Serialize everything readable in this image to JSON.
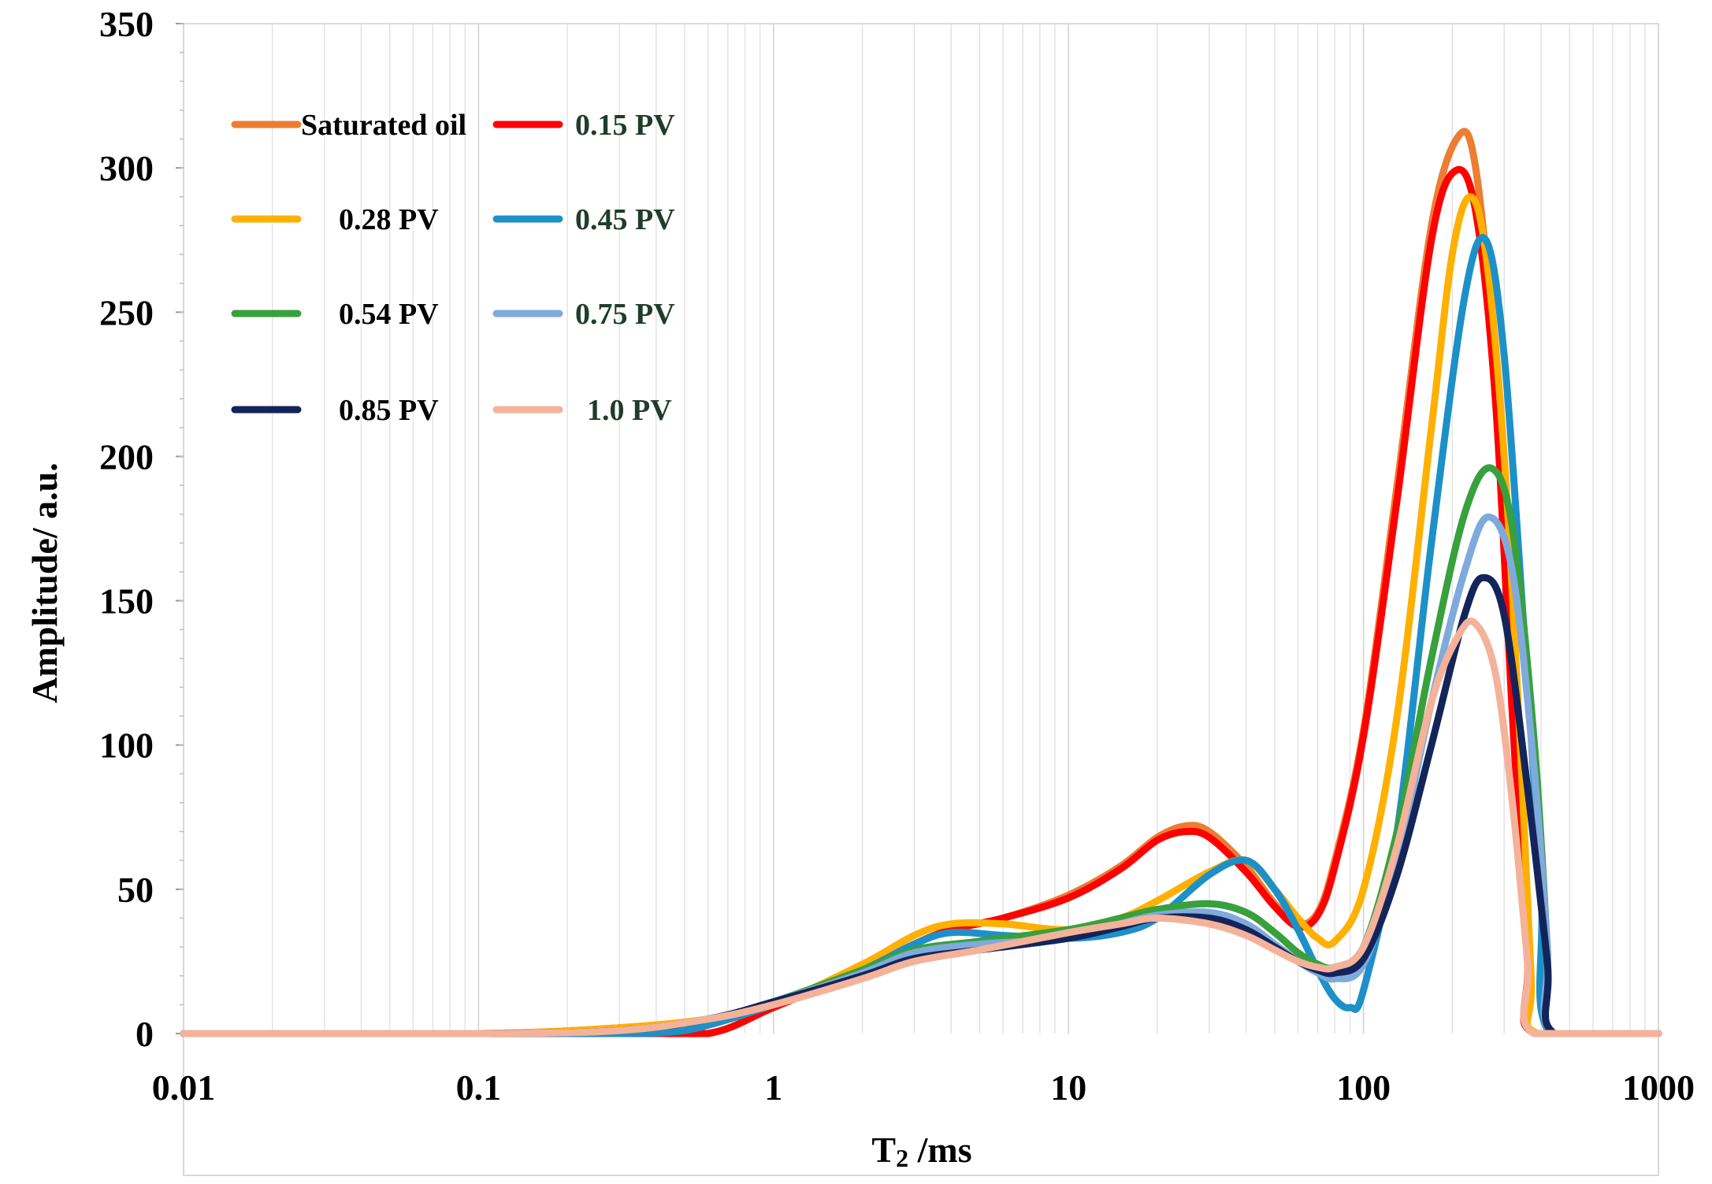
{
  "chart_data": {
    "type": "line",
    "xlabel_main": "T",
    "xlabel_sub": "2",
    "xlabel_rest": " /ms",
    "ylabel": "Amplitude/ a.u.",
    "x_scale": "log",
    "xlim": [
      0.01,
      1000
    ],
    "ylim": [
      0,
      350
    ],
    "x_ticks": [
      "0.01",
      "0.1",
      "1",
      "10",
      "100",
      "1000"
    ],
    "y_ticks": [
      "0",
      "50",
      "100",
      "150",
      "200",
      "250",
      "300",
      "350"
    ],
    "grid": "vertical minor lines only",
    "legend_position": "top-left",
    "series": [
      {
        "name": "Saturated oil",
        "color": "#ED7D31",
        "points": [
          [
            0.01,
            0
          ],
          [
            0.1,
            0
          ],
          [
            0.3,
            2
          ],
          [
            0.6,
            5
          ],
          [
            1,
            10
          ],
          [
            2,
            22
          ],
          [
            3,
            31
          ],
          [
            4,
            36
          ],
          [
            6,
            40
          ],
          [
            10,
            48
          ],
          [
            15,
            58
          ],
          [
            20,
            68
          ],
          [
            25,
            72
          ],
          [
            30,
            70
          ],
          [
            40,
            58
          ],
          [
            50,
            45
          ],
          [
            60,
            38
          ],
          [
            70,
            42
          ],
          [
            80,
            60
          ],
          [
            100,
            105
          ],
          [
            130,
            190
          ],
          [
            170,
            280
          ],
          [
            210,
            311
          ],
          [
            240,
            300
          ],
          [
            280,
            230
          ],
          [
            320,
            120
          ],
          [
            360,
            30
          ],
          [
            380,
            0
          ],
          [
            1000,
            0
          ]
        ]
      },
      {
        "name": "0.15 PV",
        "color": "#FF0000",
        "points": [
          [
            0.01,
            0
          ],
          [
            0.1,
            0
          ],
          [
            0.3,
            0
          ],
          [
            0.6,
            0
          ],
          [
            1,
            9
          ],
          [
            2,
            22
          ],
          [
            3,
            31
          ],
          [
            4,
            36
          ],
          [
            6,
            40
          ],
          [
            10,
            47
          ],
          [
            15,
            57
          ],
          [
            20,
            67
          ],
          [
            25,
            70
          ],
          [
            30,
            68
          ],
          [
            40,
            56
          ],
          [
            50,
            44
          ],
          [
            60,
            37
          ],
          [
            70,
            41
          ],
          [
            80,
            58
          ],
          [
            100,
            103
          ],
          [
            130,
            185
          ],
          [
            170,
            275
          ],
          [
            205,
            299
          ],
          [
            240,
            285
          ],
          [
            280,
            220
          ],
          [
            320,
            110
          ],
          [
            360,
            25
          ],
          [
            380,
            0
          ],
          [
            1000,
            0
          ]
        ]
      },
      {
        "name": "0.28 PV",
        "color": "#FFB000",
        "points": [
          [
            0.01,
            0
          ],
          [
            0.1,
            0
          ],
          [
            0.3,
            2
          ],
          [
            0.6,
            5
          ],
          [
            1,
            10
          ],
          [
            2,
            24
          ],
          [
            3,
            34
          ],
          [
            4,
            38
          ],
          [
            6,
            38
          ],
          [
            10,
            36
          ],
          [
            15,
            40
          ],
          [
            20,
            46
          ],
          [
            30,
            56
          ],
          [
            40,
            60
          ],
          [
            50,
            50
          ],
          [
            60,
            40
          ],
          [
            70,
            33
          ],
          [
            80,
            32
          ],
          [
            100,
            50
          ],
          [
            130,
            110
          ],
          [
            170,
            210
          ],
          [
            200,
            270
          ],
          [
            230,
            290
          ],
          [
            260,
            270
          ],
          [
            300,
            200
          ],
          [
            340,
            100
          ],
          [
            370,
            20
          ],
          [
            390,
            0
          ],
          [
            1000,
            0
          ]
        ]
      },
      {
        "name": "0.45 PV",
        "color": "#1E90C8",
        "points": [
          [
            0.01,
            0
          ],
          [
            0.1,
            0
          ],
          [
            0.3,
            0
          ],
          [
            0.5,
            1
          ],
          [
            1,
            10
          ],
          [
            2,
            22
          ],
          [
            3,
            31
          ],
          [
            4,
            35
          ],
          [
            6,
            34
          ],
          [
            10,
            33
          ],
          [
            15,
            35
          ],
          [
            20,
            40
          ],
          [
            30,
            55
          ],
          [
            40,
            60
          ],
          [
            50,
            50
          ],
          [
            60,
            36
          ],
          [
            70,
            22
          ],
          [
            80,
            12
          ],
          [
            90,
            9
          ],
          [
            100,
            15
          ],
          [
            130,
            70
          ],
          [
            170,
            170
          ],
          [
            220,
            255
          ],
          [
            260,
            275
          ],
          [
            300,
            235
          ],
          [
            350,
            140
          ],
          [
            400,
            50
          ],
          [
            430,
            0
          ],
          [
            1000,
            0
          ]
        ]
      },
      {
        "name": "0.54 PV",
        "color": "#38A03C",
        "points": [
          [
            0.01,
            0
          ],
          [
            0.1,
            0
          ],
          [
            0.3,
            1
          ],
          [
            0.6,
            5
          ],
          [
            1,
            11
          ],
          [
            2,
            22
          ],
          [
            3,
            29
          ],
          [
            5,
            32
          ],
          [
            10,
            36
          ],
          [
            15,
            40
          ],
          [
            20,
            43
          ],
          [
            30,
            45
          ],
          [
            40,
            42
          ],
          [
            50,
            35
          ],
          [
            60,
            28
          ],
          [
            70,
            24
          ],
          [
            80,
            23
          ],
          [
            100,
            30
          ],
          [
            130,
            70
          ],
          [
            170,
            130
          ],
          [
            220,
            180
          ],
          [
            270,
            196
          ],
          [
            320,
            175
          ],
          [
            380,
            100
          ],
          [
            420,
            30
          ],
          [
            440,
            0
          ],
          [
            1000,
            0
          ]
        ]
      },
      {
        "name": "0.75 PV",
        "color": "#7EAADC",
        "points": [
          [
            0.01,
            0
          ],
          [
            0.1,
            0
          ],
          [
            0.3,
            1
          ],
          [
            0.6,
            5
          ],
          [
            1,
            11
          ],
          [
            2,
            21
          ],
          [
            3,
            28
          ],
          [
            5,
            31
          ],
          [
            10,
            33
          ],
          [
            15,
            38
          ],
          [
            20,
            41
          ],
          [
            30,
            42
          ],
          [
            40,
            38
          ],
          [
            50,
            31
          ],
          [
            60,
            25
          ],
          [
            70,
            21
          ],
          [
            80,
            19
          ],
          [
            100,
            24
          ],
          [
            130,
            60
          ],
          [
            170,
            115
          ],
          [
            220,
            160
          ],
          [
            265,
            179
          ],
          [
            320,
            160
          ],
          [
            380,
            90
          ],
          [
            420,
            30
          ],
          [
            440,
            0
          ],
          [
            1000,
            0
          ]
        ]
      },
      {
        "name": "0.85 PV",
        "color": "#13245A",
        "points": [
          [
            0.01,
            0
          ],
          [
            0.1,
            0
          ],
          [
            0.3,
            1
          ],
          [
            0.6,
            5
          ],
          [
            1,
            11
          ],
          [
            2,
            20
          ],
          [
            3,
            26
          ],
          [
            5,
            29
          ],
          [
            10,
            33
          ],
          [
            15,
            37
          ],
          [
            20,
            40
          ],
          [
            30,
            40
          ],
          [
            40,
            36
          ],
          [
            50,
            30
          ],
          [
            60,
            25
          ],
          [
            70,
            22
          ],
          [
            80,
            21
          ],
          [
            100,
            26
          ],
          [
            130,
            55
          ],
          [
            170,
            100
          ],
          [
            220,
            145
          ],
          [
            255,
            158
          ],
          [
            300,
            145
          ],
          [
            360,
            85
          ],
          [
            420,
            25
          ],
          [
            445,
            0
          ],
          [
            1000,
            0
          ]
        ]
      },
      {
        "name": "1.0 PV",
        "color": "#F4B29A",
        "points": [
          [
            0.01,
            0
          ],
          [
            0.1,
            0
          ],
          [
            0.3,
            1
          ],
          [
            0.6,
            5
          ],
          [
            1,
            10
          ],
          [
            2,
            19
          ],
          [
            3,
            25
          ],
          [
            5,
            29
          ],
          [
            10,
            35
          ],
          [
            15,
            38
          ],
          [
            20,
            40
          ],
          [
            30,
            38
          ],
          [
            40,
            34
          ],
          [
            50,
            29
          ],
          [
            60,
            25
          ],
          [
            70,
            23
          ],
          [
            80,
            23
          ],
          [
            100,
            30
          ],
          [
            130,
            65
          ],
          [
            170,
            115
          ],
          [
            210,
            138
          ],
          [
            240,
            142
          ],
          [
            280,
            125
          ],
          [
            320,
            80
          ],
          [
            360,
            25
          ],
          [
            380,
            0
          ],
          [
            1000,
            0
          ]
        ]
      }
    ]
  }
}
